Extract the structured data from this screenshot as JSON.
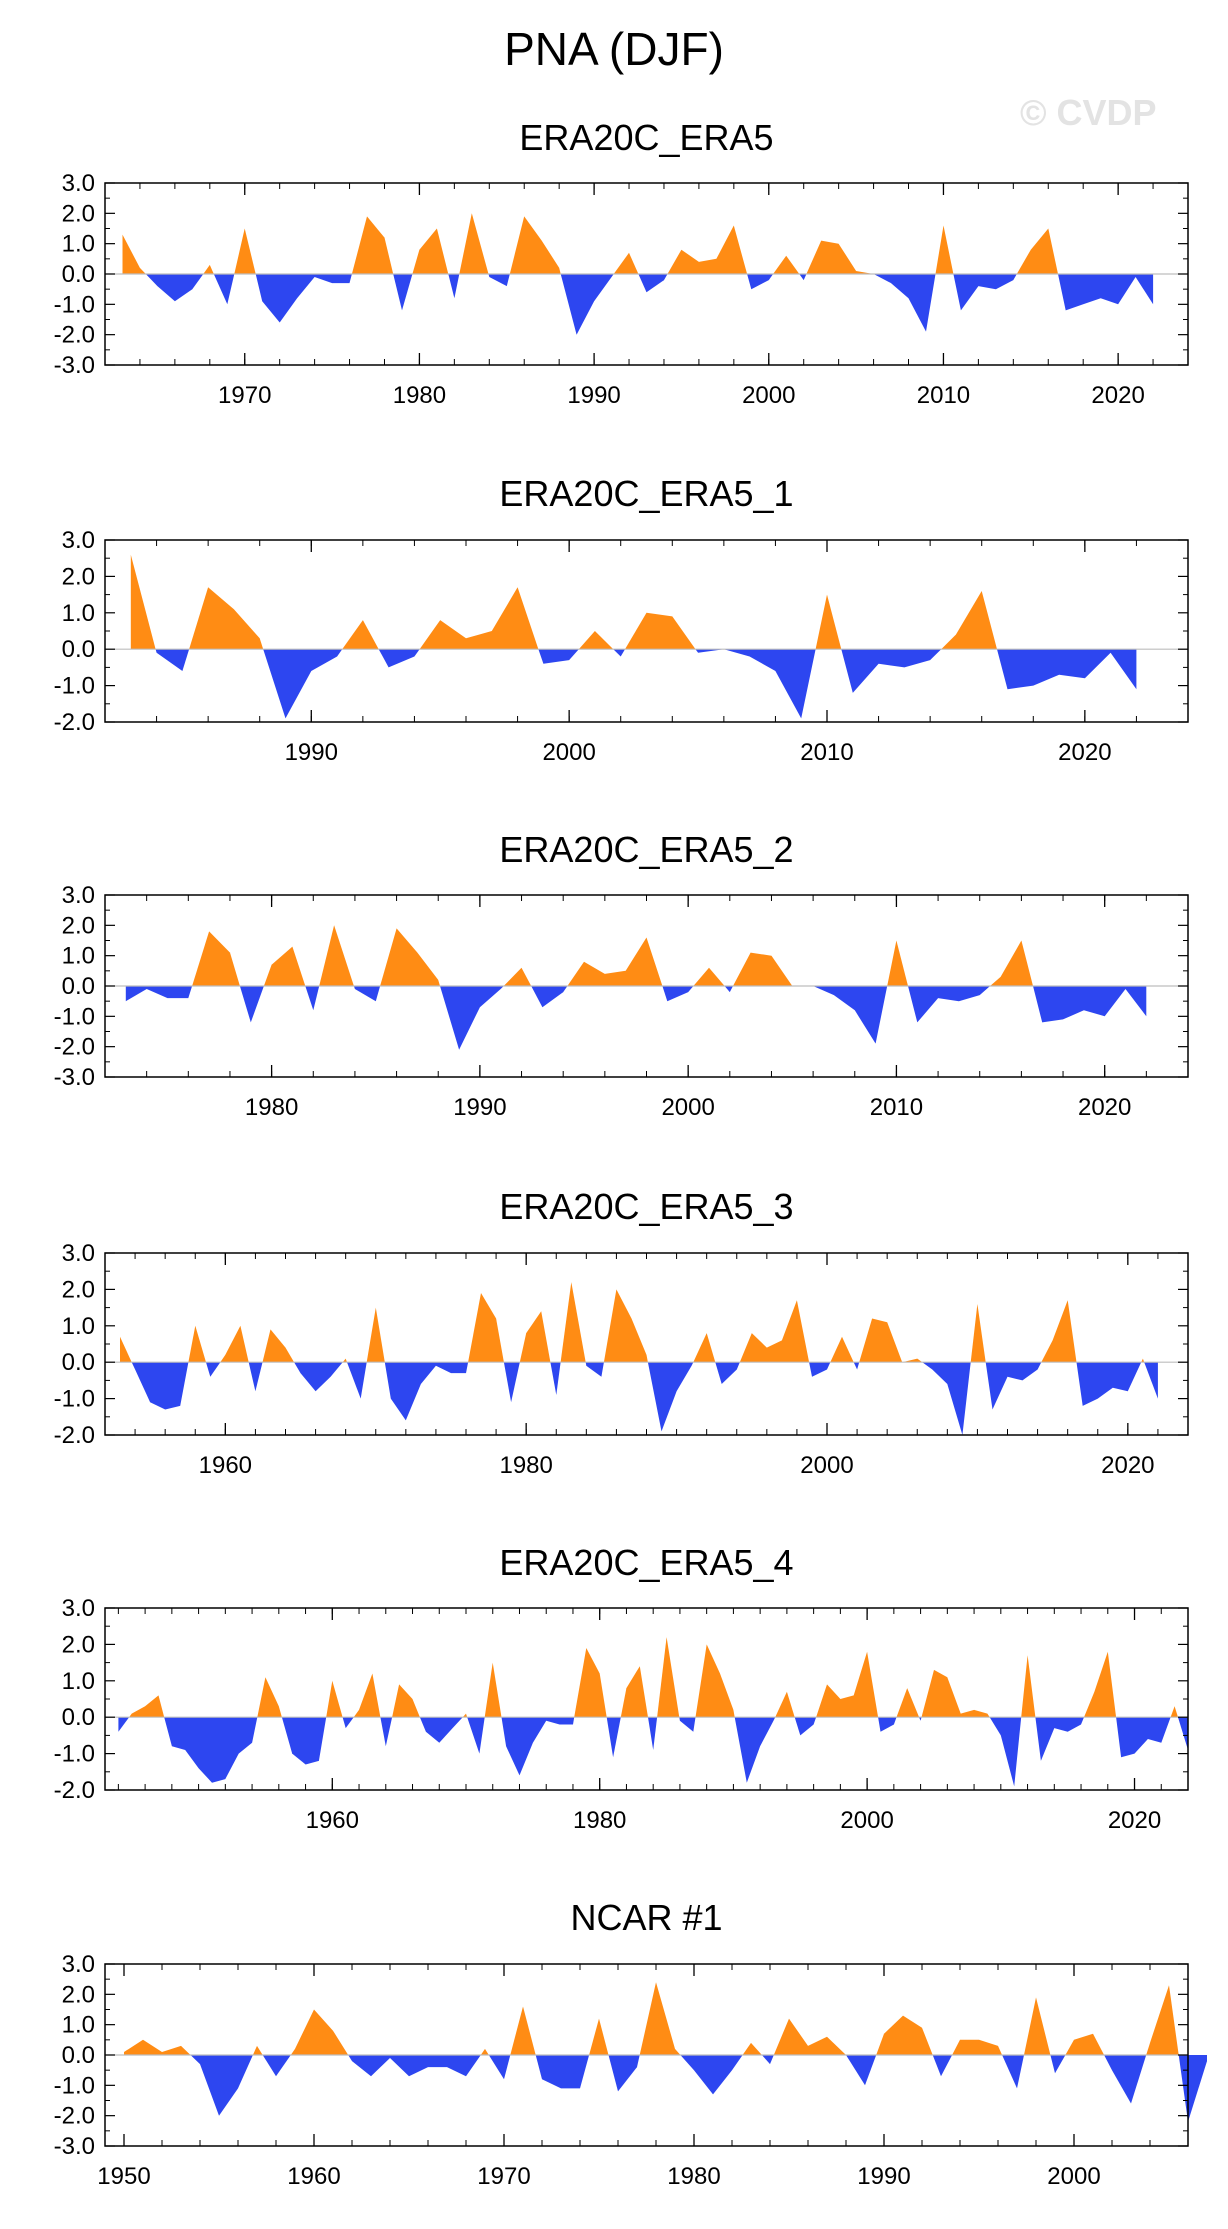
{
  "figure": {
    "title": "PNA (DJF)",
    "watermark": "© CVDP",
    "positive_color": "#ff8c14",
    "negative_color": "#2d46f0",
    "zero_line_color": "#bdbdbd"
  },
  "chart_data": [
    {
      "type": "area",
      "title": "ERA20C_ERA5",
      "xlabel": "",
      "ylabel": "",
      "xlim": [
        1962,
        2024
      ],
      "ylim": [
        -3.0,
        3.0
      ],
      "yticks": [
        "3.0",
        "2.0",
        "1.0",
        "0.0",
        "-1.0",
        "-2.0",
        "-3.0"
      ],
      "xticks": [
        1970,
        1980,
        1990,
        2000,
        2010,
        2020
      ],
      "years_start": 1963,
      "values": [
        1.3,
        0.2,
        -0.4,
        -0.9,
        -0.5,
        0.3,
        -1.0,
        1.5,
        -0.9,
        -1.6,
        -0.8,
        -0.1,
        -0.3,
        -0.3,
        1.9,
        1.2,
        -1.2,
        0.8,
        1.5,
        -0.8,
        2.0,
        -0.1,
        -0.4,
        1.9,
        1.1,
        0.2,
        -2.0,
        -0.9,
        -0.1,
        0.7,
        -0.6,
        -0.2,
        0.8,
        0.4,
        0.5,
        1.6,
        -0.5,
        -0.2,
        0.6,
        -0.2,
        1.1,
        1.0,
        0.1,
        0.0,
        -0.3,
        -0.8,
        -1.9,
        1.6,
        -1.2,
        -0.4,
        -0.5,
        -0.2,
        0.8,
        1.5,
        -1.2,
        -1.0,
        -0.8,
        -1.0,
        -0.1,
        -1.0
      ]
    },
    {
      "type": "area",
      "title": "ERA20C_ERA5_1",
      "xlabel": "",
      "ylabel": "",
      "xlim": [
        1982,
        2024
      ],
      "ylim": [
        -2.0,
        3.0
      ],
      "yticks": [
        "3.0",
        "2.0",
        "1.0",
        "0.0",
        "-1.0",
        "-2.0"
      ],
      "xticks": [
        1990,
        2000,
        2010,
        2020
      ],
      "years_start": 1983,
      "values": [
        2.6,
        -0.1,
        -0.6,
        1.7,
        1.1,
        0.3,
        -1.9,
        -0.6,
        -0.2,
        0.8,
        -0.5,
        -0.2,
        0.8,
        0.3,
        0.5,
        1.7,
        -0.4,
        -0.3,
        0.5,
        -0.2,
        1.0,
        0.9,
        -0.1,
        0.0,
        -0.2,
        -0.6,
        -1.9,
        1.5,
        -1.2,
        -0.4,
        -0.5,
        -0.3,
        0.4,
        1.6,
        -1.1,
        -1.0,
        -0.7,
        -0.8,
        -0.1,
        -1.1
      ]
    },
    {
      "type": "area",
      "title": "ERA20C_ERA5_2",
      "xlabel": "",
      "ylabel": "",
      "xlim": [
        1972,
        2024
      ],
      "ylim": [
        -3.0,
        3.0
      ],
      "yticks": [
        "3.0",
        "2.0",
        "1.0",
        "0.0",
        "-1.0",
        "-2.0",
        "-3.0"
      ],
      "xticks": [
        1980,
        1990,
        2000,
        2010,
        2020
      ],
      "years_start": 1973,
      "values": [
        -0.5,
        -0.1,
        -0.4,
        -0.4,
        1.8,
        1.1,
        -1.2,
        0.7,
        1.3,
        -0.8,
        2.0,
        -0.1,
        -0.5,
        1.9,
        1.1,
        0.2,
        -2.1,
        -0.7,
        -0.1,
        0.6,
        -0.7,
        -0.2,
        0.8,
        0.4,
        0.5,
        1.6,
        -0.5,
        -0.2,
        0.6,
        -0.2,
        1.1,
        1.0,
        0.0,
        0.0,
        -0.3,
        -0.8,
        -1.9,
        1.5,
        -1.2,
        -0.4,
        -0.5,
        -0.3,
        0.3,
        1.5,
        -1.2,
        -1.1,
        -0.8,
        -1.0,
        -0.1,
        -1.0
      ]
    },
    {
      "type": "area",
      "title": "ERA20C_ERA5_3",
      "xlabel": "",
      "ylabel": "",
      "xlim": [
        1952,
        2024
      ],
      "ylim": [
        -2.0,
        3.0
      ],
      "yticks": [
        "3.0",
        "2.0",
        "1.0",
        "0.0",
        "-1.0",
        "-2.0"
      ],
      "xticks": [
        1960,
        1980,
        2000,
        2020
      ],
      "years_start": 1953,
      "values": [
        0.7,
        -0.2,
        -1.1,
        -1.3,
        -1.2,
        1.0,
        -0.4,
        0.2,
        1.0,
        -0.8,
        0.9,
        0.4,
        -0.3,
        -0.8,
        -0.4,
        0.1,
        -1.0,
        1.5,
        -1.0,
        -1.6,
        -0.6,
        -0.1,
        -0.3,
        -0.3,
        1.9,
        1.2,
        -1.1,
        0.8,
        1.4,
        -0.9,
        2.2,
        -0.1,
        -0.4,
        2.0,
        1.2,
        0.2,
        -1.9,
        -0.8,
        -0.1,
        0.8,
        -0.6,
        -0.2,
        0.8,
        0.4,
        0.6,
        1.7,
        -0.4,
        -0.2,
        0.7,
        -0.2,
        1.2,
        1.1,
        0.0,
        0.1,
        -0.2,
        -0.6,
        -2.0,
        1.6,
        -1.3,
        -0.4,
        -0.5,
        -0.2,
        0.6,
        1.7,
        -1.2,
        -1.0,
        -0.7,
        -0.8,
        0.1,
        -1.0
      ]
    },
    {
      "type": "area",
      "title": "ERA20C_ERA5_4",
      "xlabel": "",
      "ylabel": "",
      "xlim": [
        1943,
        2024
      ],
      "ylim": [
        -2.0,
        3.0
      ],
      "yticks": [
        "3.0",
        "2.0",
        "1.0",
        "0.0",
        "-1.0",
        "-2.0"
      ],
      "xticks": [
        1960,
        1980,
        2000,
        2020
      ],
      "years_start": 1944,
      "values": [
        -0.4,
        0.1,
        0.3,
        0.6,
        -0.8,
        -0.9,
        -1.4,
        -1.8,
        -1.7,
        -1.0,
        -0.7,
        1.1,
        0.3,
        -1.0,
        -1.3,
        -1.2,
        1.0,
        -0.3,
        0.2,
        1.2,
        -0.8,
        0.9,
        0.5,
        -0.4,
        -0.7,
        -0.3,
        0.1,
        -1.0,
        1.5,
        -0.8,
        -1.6,
        -0.7,
        -0.1,
        -0.2,
        -0.2,
        1.9,
        1.2,
        -1.1,
        0.8,
        1.4,
        -0.9,
        2.2,
        -0.1,
        -0.4,
        2.0,
        1.2,
        0.2,
        -1.8,
        -0.8,
        -0.1,
        0.7,
        -0.5,
        -0.2,
        0.9,
        0.5,
        0.6,
        1.8,
        -0.4,
        -0.2,
        0.8,
        -0.1,
        1.3,
        1.1,
        0.1,
        0.2,
        0.1,
        -0.5,
        -1.9,
        1.7,
        -1.2,
        -0.3,
        -0.4,
        -0.2,
        0.7,
        1.8,
        -1.1,
        -1.0,
        -0.6,
        -0.7,
        0.3,
        -0.9
      ]
    },
    {
      "type": "area",
      "title": "NCAR #1",
      "xlabel": "",
      "ylabel": "",
      "xlim": [
        1949,
        2006
      ],
      "ylim": [
        -3.0,
        3.0
      ],
      "yticks": [
        "3.0",
        "2.0",
        "1.0",
        "0.0",
        "-1.0",
        "-2.0",
        "-3.0"
      ],
      "xticks": [
        1950,
        1960,
        1970,
        1980,
        1990,
        2000
      ],
      "years_start": 1950,
      "values": [
        0.1,
        0.5,
        0.1,
        0.3,
        -0.3,
        -2.0,
        -1.1,
        0.3,
        -0.7,
        0.2,
        1.5,
        0.8,
        -0.2,
        -0.7,
        -0.1,
        -0.7,
        -0.4,
        -0.4,
        -0.7,
        0.2,
        -0.8,
        1.6,
        -0.8,
        -1.1,
        -1.1,
        1.2,
        -1.2,
        -0.4,
        2.4,
        0.2,
        -0.5,
        -1.3,
        -0.5,
        0.4,
        -0.3,
        1.2,
        0.3,
        0.6,
        0.0,
        -1.0,
        0.7,
        1.3,
        0.9,
        -0.7,
        0.5,
        0.5,
        0.3,
        -1.1,
        1.9,
        -0.6,
        0.5,
        0.7,
        -0.5,
        -1.6,
        0.4,
        2.3,
        -2.2,
        -0.2
      ]
    }
  ]
}
